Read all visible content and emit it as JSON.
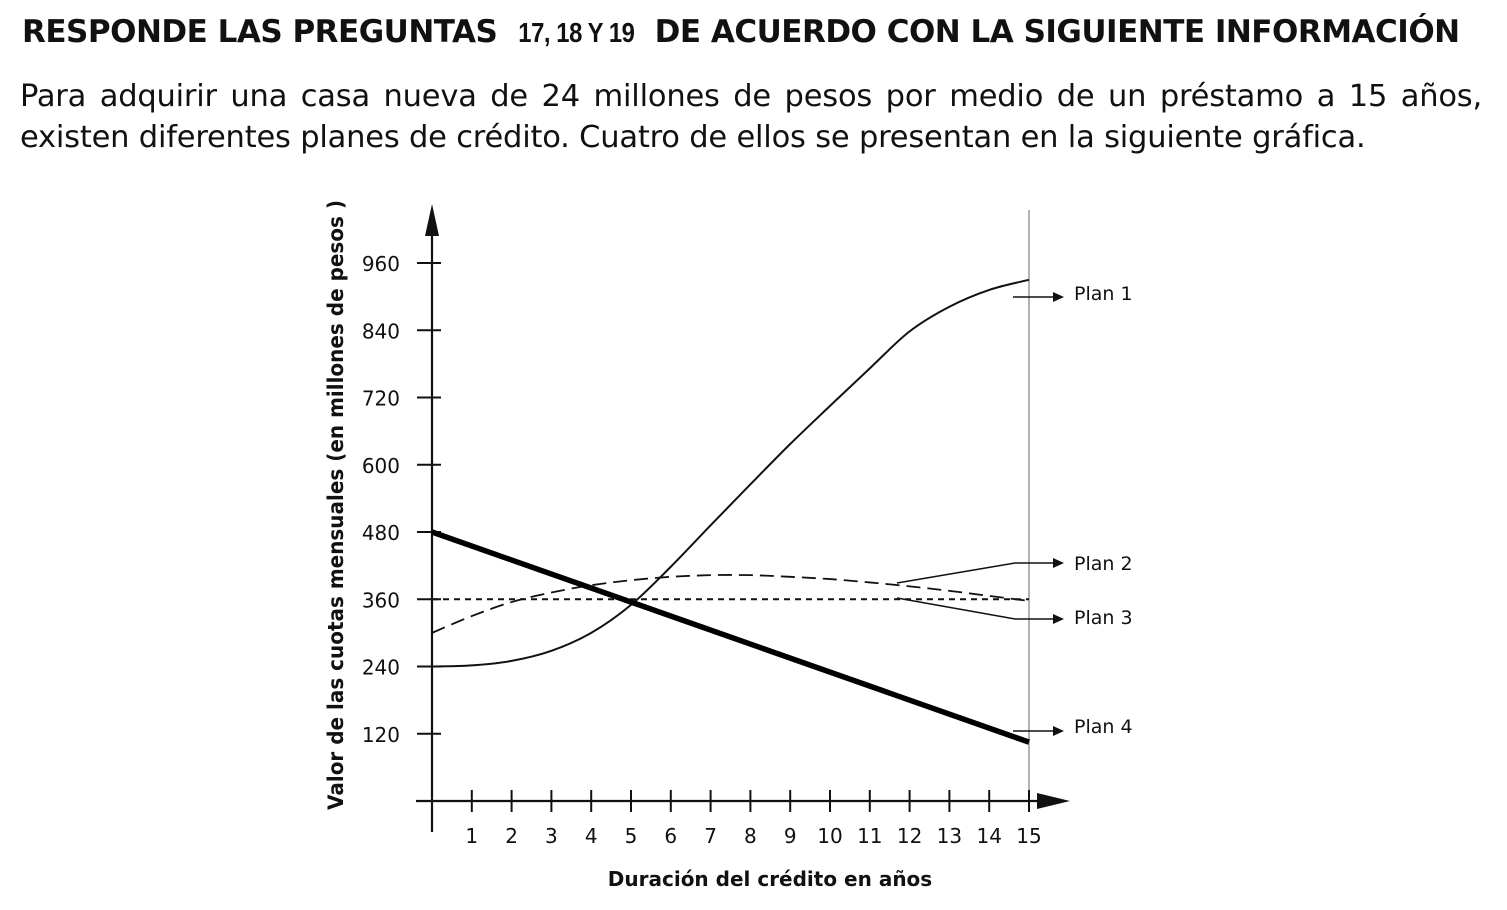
{
  "heading": {
    "part1": "RESPONDE LAS PREGUNTAS",
    "numbers": "17, 18 Y 19",
    "part2": "DE ACUERDO CON LA SIGUIENTE INFORMACIÓN"
  },
  "intro": "Para adquirir una casa nueva de 24 millones de pesos por medio de un préstamo a 15 años, existen diferentes planes de crédito. Cuatro de ellos se presentan en la siguiente gráfica.",
  "chart_data": {
    "type": "line",
    "title": "",
    "xlabel": "Duración del crédito en años",
    "ylabel": "Valor de las cuotas mensuales (en millones de pesos )",
    "xlim": [
      0,
      15
    ],
    "ylim": [
      0,
      960
    ],
    "x_ticks": [
      1,
      2,
      3,
      4,
      5,
      6,
      7,
      8,
      9,
      10,
      11,
      12,
      13,
      14,
      15
    ],
    "y_ticks": [
      120,
      240,
      360,
      480,
      600,
      720,
      840,
      960
    ],
    "grid": false,
    "legend": "right-side callout labels",
    "series": [
      {
        "name": "Plan 1",
        "style": "solid-thin",
        "x": [
          0,
          1,
          2,
          3,
          4,
          5,
          6,
          7,
          8,
          9,
          10,
          11,
          12,
          13,
          14,
          15
        ],
        "y": [
          240,
          242,
          250,
          268,
          300,
          350,
          418,
          492,
          565,
          637,
          705,
          772,
          838,
          882,
          912,
          930
        ]
      },
      {
        "name": "Plan 2",
        "style": "dashed-long",
        "x": [
          0,
          1,
          2,
          3,
          4,
          5,
          6,
          7,
          8,
          9,
          10,
          11,
          12,
          13,
          14,
          15
        ],
        "y": [
          300,
          330,
          355,
          372,
          385,
          394,
          400,
          403,
          403,
          400,
          396,
          390,
          383,
          375,
          366,
          357
        ]
      },
      {
        "name": "Plan 3",
        "style": "dashed-short",
        "x": [
          0,
          15
        ],
        "y": [
          360,
          360
        ]
      },
      {
        "name": "Plan 4",
        "style": "solid-thick",
        "x": [
          0,
          15
        ],
        "y": [
          480,
          105
        ]
      }
    ]
  }
}
